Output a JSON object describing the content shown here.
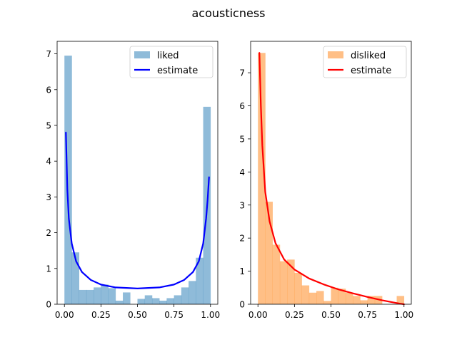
{
  "figure": {
    "title": "acousticness"
  },
  "chart_data": [
    {
      "type": "bar",
      "title": "",
      "xlabel": "",
      "ylabel": "",
      "xlim": [
        -0.05,
        1.05
      ],
      "ylim": [
        0,
        7.35
      ],
      "x_ticks": [
        0.0,
        0.25,
        0.5,
        0.75,
        1.0
      ],
      "x_tick_labels": [
        "0.00",
        "0.25",
        "0.50",
        "0.75",
        "1.00"
      ],
      "y_ticks": [
        0,
        1,
        2,
        3,
        4,
        5,
        6,
        7
      ],
      "y_tick_labels": [
        "0",
        "1",
        "2",
        "3",
        "4",
        "5",
        "6",
        "7"
      ],
      "legend_position": "top-right",
      "histogram": {
        "name": "liked",
        "color": "#1f77b4",
        "alpha": 0.5,
        "bin_edges": [
          0.0,
          0.05,
          0.1,
          0.15,
          0.2,
          0.25,
          0.3,
          0.35,
          0.4,
          0.45,
          0.5,
          0.55,
          0.6,
          0.65,
          0.7,
          0.75,
          0.8,
          0.85,
          0.9,
          0.95,
          1.0
        ],
        "values": [
          6.95,
          1.45,
          0.4,
          0.4,
          0.47,
          0.55,
          0.45,
          0.1,
          0.33,
          0.0,
          0.15,
          0.25,
          0.17,
          0.1,
          0.17,
          0.25,
          0.47,
          0.65,
          1.3,
          5.52
        ]
      },
      "curve": {
        "name": "estimate",
        "color": "#0000ff",
        "x": [
          0.01,
          0.02,
          0.03,
          0.05,
          0.08,
          0.12,
          0.18,
          0.25,
          0.35,
          0.5,
          0.65,
          0.75,
          0.82,
          0.88,
          0.92,
          0.95,
          0.97,
          0.98,
          0.99
        ],
        "y": [
          4.8,
          3.2,
          2.4,
          1.7,
          1.2,
          0.9,
          0.68,
          0.55,
          0.47,
          0.44,
          0.47,
          0.55,
          0.68,
          0.9,
          1.2,
          1.7,
          2.4,
          2.9,
          3.55
        ]
      }
    },
    {
      "type": "bar",
      "title": "",
      "xlabel": "",
      "ylabel": "",
      "xlim": [
        -0.05,
        1.05
      ],
      "ylim": [
        0,
        7.95
      ],
      "x_ticks": [
        0.0,
        0.25,
        0.5,
        0.75,
        1.0
      ],
      "x_tick_labels": [
        "0.00",
        "0.25",
        "0.50",
        "0.75",
        "1.00"
      ],
      "y_ticks": [
        0,
        1,
        2,
        3,
        4,
        5,
        6,
        7
      ],
      "y_tick_labels": [
        "0",
        "1",
        "2",
        "3",
        "4",
        "5",
        "6",
        "7"
      ],
      "legend_position": "top-right",
      "histogram": {
        "name": "disliked",
        "color": "#ff7f0e",
        "alpha": 0.5,
        "bin_edges": [
          0.0,
          0.05,
          0.1,
          0.15,
          0.2,
          0.25,
          0.3,
          0.35,
          0.4,
          0.45,
          0.5,
          0.55,
          0.6,
          0.65,
          0.7,
          0.75,
          0.8,
          0.85,
          0.9,
          0.95,
          1.0
        ],
        "values": [
          7.6,
          3.1,
          1.8,
          1.3,
          1.35,
          0.95,
          0.57,
          0.35,
          0.4,
          0.1,
          0.5,
          0.47,
          0.35,
          0.25,
          0.12,
          0.25,
          0.25,
          0.0,
          0.0,
          0.25
        ]
      },
      "curve": {
        "name": "estimate",
        "color": "#ff0000",
        "x": [
          0.01,
          0.02,
          0.03,
          0.05,
          0.08,
          0.12,
          0.18,
          0.25,
          0.35,
          0.45,
          0.55,
          0.65,
          0.75,
          0.85,
          0.92,
          0.97,
          1.0
        ],
        "y": [
          7.6,
          6.0,
          4.8,
          3.4,
          2.5,
          1.85,
          1.35,
          1.05,
          0.78,
          0.6,
          0.45,
          0.33,
          0.22,
          0.12,
          0.06,
          0.02,
          0.0
        ]
      }
    }
  ]
}
